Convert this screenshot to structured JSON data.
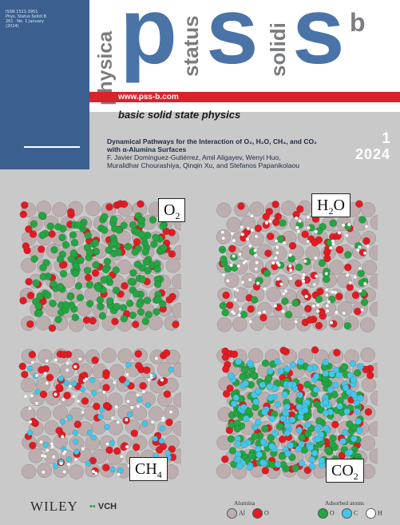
{
  "journal": {
    "issn_lines": [
      "ISSN 1521-3951",
      "Phys. Status Solidi B",
      "261 · No. 1 January",
      "(2024)"
    ],
    "word_physica": "physica",
    "word_status": "status",
    "word_solidi": "solidi",
    "logo_letters": [
      "p",
      "s",
      "s"
    ],
    "logo_superscript": "b",
    "url": "www.pss-b.com",
    "subtitle": "basic solid state physics",
    "issue_number": "1",
    "year": "2024"
  },
  "article": {
    "title_line1": "Dynamical Pathways for the Interaction of O₂, H₂O, CH₄, and CO₂",
    "title_line2": "with α-Alumina Surfaces",
    "authors_line1": "F. Javier Dominguez-Gutiérrez, Amil Aligayev, Wenyi Huo,",
    "authors_line2": "Muralidhar Chourashiya, Qinqin Xu, and Stefanos Papanikolaou"
  },
  "panels": [
    {
      "label_main": "O",
      "label_sub": "2",
      "label_tail": ""
    },
    {
      "label_main": "H",
      "label_sub": "2",
      "label_tail": "O"
    },
    {
      "label_main": "CH",
      "label_sub": "4",
      "label_tail": ""
    },
    {
      "label_main": "CO",
      "label_sub": "2",
      "label_tail": ""
    }
  ],
  "publisher": {
    "name": "WILEY",
    "imprint": "VCH"
  },
  "legend": {
    "alumina_heading": "Alumina",
    "adsorbed_heading": "Adsorbed atoms",
    "items": [
      {
        "label": "Al",
        "color": "#bcaeae"
      },
      {
        "label": "O",
        "color": "#e21b23"
      },
      {
        "label": "O",
        "color": "#25a443"
      },
      {
        "label": "C",
        "color": "#45c6e8"
      },
      {
        "label": "H",
        "color": "#ffffff"
      }
    ]
  },
  "colors": {
    "cover_blue": "#3b5f8f",
    "logo_blue": "#4a73a8",
    "accent_red": "#d8232a",
    "background_grey": "#c9c9ca"
  }
}
